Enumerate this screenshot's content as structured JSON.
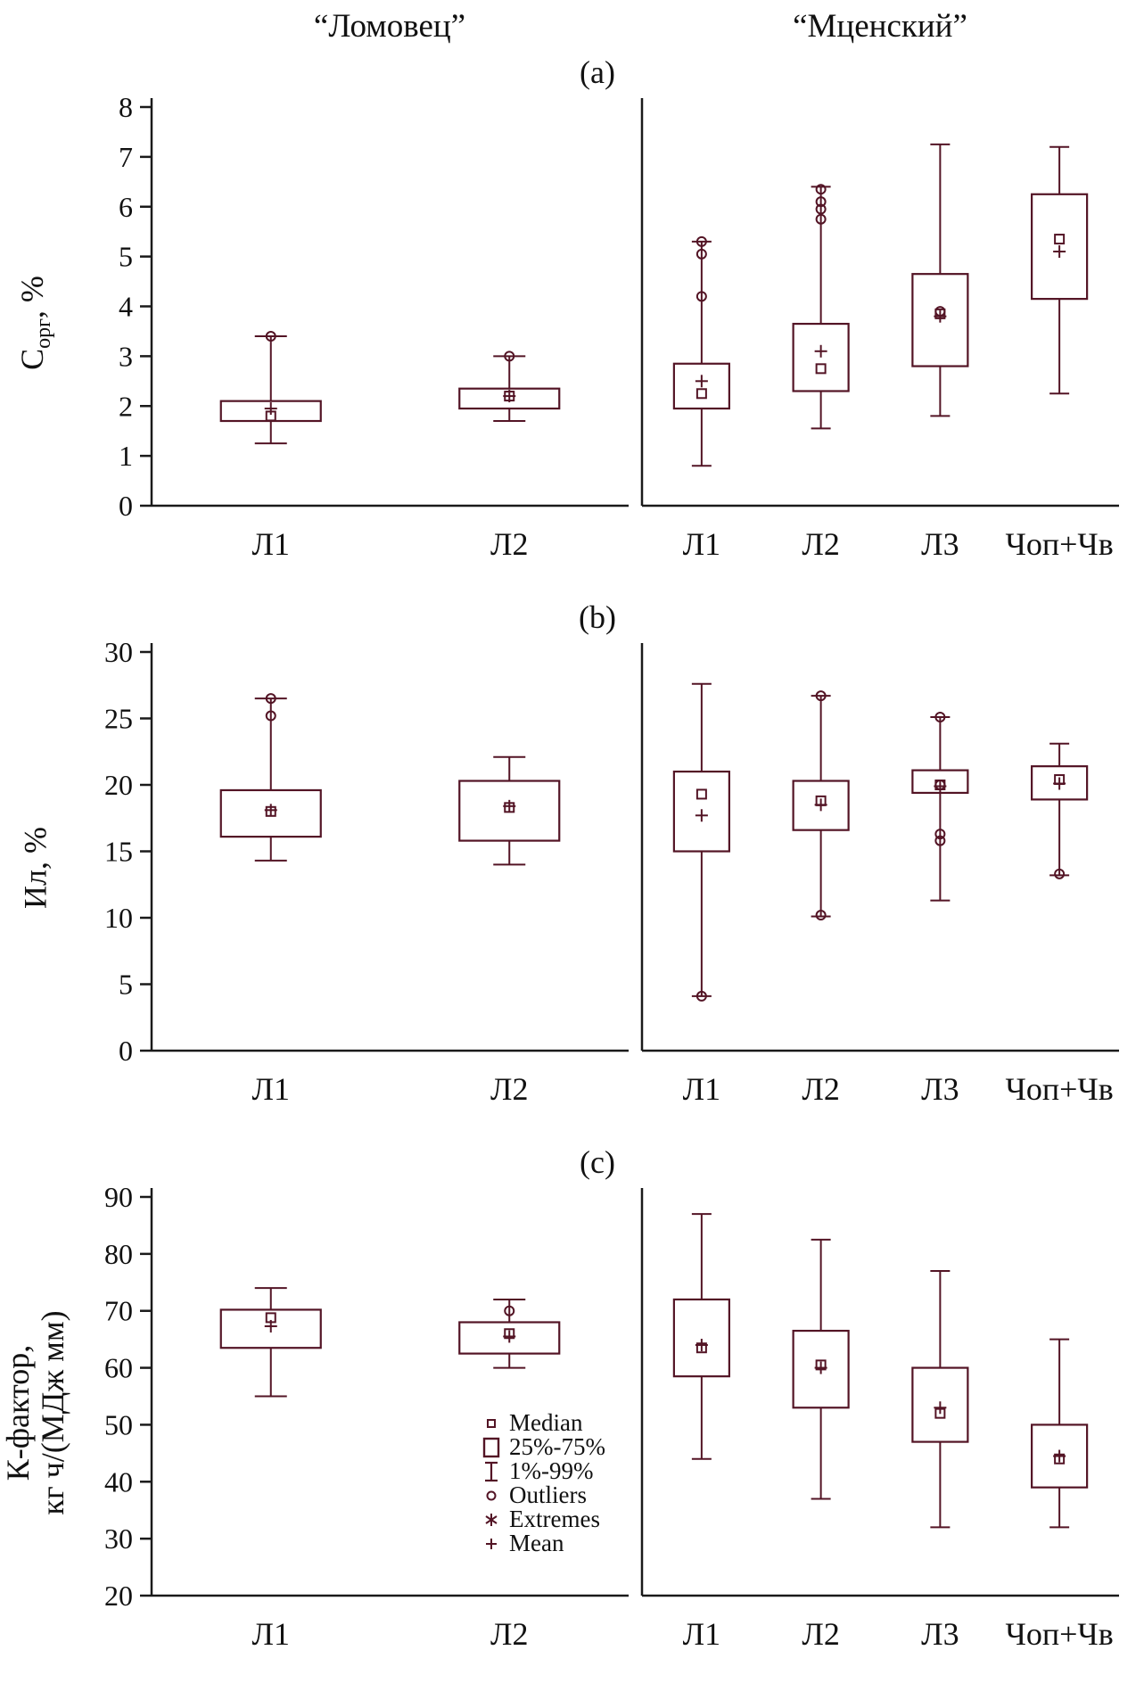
{
  "figure": {
    "group_headers": {
      "left": "“Ломовец”",
      "right": "“Мценский”"
    }
  },
  "colors": {
    "box": "#531425",
    "axis": "#1a1a1a",
    "text": "#111111",
    "background": "#ffffff"
  },
  "legend": {
    "items": [
      {
        "key": "median",
        "label": "Median"
      },
      {
        "key": "iqr",
        "label": "25%-75%"
      },
      {
        "key": "whisker",
        "label": "1%-99%"
      },
      {
        "key": "outliers",
        "label": "Outliers"
      },
      {
        "key": "extremes",
        "label": "Extremes"
      },
      {
        "key": "mean",
        "label": "Mean"
      }
    ]
  },
  "chart_data": [
    {
      "type": "boxplot",
      "title": "(a)",
      "ylabel": {
        "pre": "C",
        "sub": "орг",
        "post": ", %",
        "line2": ""
      },
      "ylim": [
        0,
        8
      ],
      "yticks": [
        0,
        1,
        2,
        3,
        4,
        5,
        6,
        7,
        8
      ],
      "groups": [
        {
          "name": "Ломовец",
          "categories": [
            "Л1",
            "Л2"
          ],
          "boxes": [
            {
              "low": 1.25,
              "q1": 1.7,
              "median": 1.8,
              "q3": 2.1,
              "high": 3.4,
              "mean": 1.95,
              "outliers": [
                3.4
              ]
            },
            {
              "low": 1.7,
              "q1": 1.95,
              "median": 2.2,
              "q3": 2.35,
              "high": 3.0,
              "mean": 2.2,
              "outliers": [
                3.0
              ]
            }
          ]
        },
        {
          "name": "Мценский",
          "categories": [
            "Л1",
            "Л2",
            "Л3",
            "Чоп+Чв"
          ],
          "boxes": [
            {
              "low": 0.8,
              "q1": 1.95,
              "median": 2.25,
              "q3": 2.85,
              "high": 5.3,
              "mean": 2.5,
              "outliers": [
                4.2,
                5.05,
                5.3
              ]
            },
            {
              "low": 1.55,
              "q1": 2.3,
              "median": 2.75,
              "q3": 3.65,
              "high": 6.4,
              "mean": 3.1,
              "outliers": [
                5.75,
                5.95,
                6.1,
                6.35
              ]
            },
            {
              "low": 1.8,
              "q1": 2.8,
              "median": 3.85,
              "q3": 4.65,
              "high": 7.25,
              "mean": 3.8,
              "outliers": [
                3.9
              ]
            },
            {
              "low": 2.25,
              "q1": 4.15,
              "median": 5.35,
              "q3": 6.25,
              "high": 7.2,
              "mean": 5.1,
              "outliers": []
            }
          ]
        }
      ]
    },
    {
      "type": "boxplot",
      "title": "(b)",
      "ylabel": {
        "pre": "Ил, %",
        "sub": "",
        "post": "",
        "line2": ""
      },
      "ylim": [
        0,
        30
      ],
      "yticks": [
        0,
        5,
        10,
        15,
        20,
        25,
        30
      ],
      "groups": [
        {
          "name": "Ломовец",
          "categories": [
            "Л1",
            "Л2"
          ],
          "boxes": [
            {
              "low": 14.3,
              "q1": 16.1,
              "median": 18.0,
              "q3": 19.6,
              "high": 26.5,
              "mean": 18.1,
              "outliers": [
                25.2,
                26.5
              ]
            },
            {
              "low": 14.0,
              "q1": 15.8,
              "median": 18.3,
              "q3": 20.3,
              "high": 22.1,
              "mean": 18.4,
              "outliers": []
            }
          ]
        },
        {
          "name": "Мценский",
          "categories": [
            "Л1",
            "Л2",
            "Л3",
            "Чоп+Чв"
          ],
          "boxes": [
            {
              "low": 4.1,
              "q1": 15.0,
              "median": 19.3,
              "q3": 21.0,
              "high": 27.6,
              "mean": 17.7,
              "outliers": [
                4.1
              ]
            },
            {
              "low": 10.1,
              "q1": 16.6,
              "median": 18.8,
              "q3": 20.3,
              "high": 26.7,
              "mean": 18.5,
              "outliers": [
                10.2,
                26.7
              ]
            },
            {
              "low": 11.3,
              "q1": 19.4,
              "median": 20.0,
              "q3": 21.1,
              "high": 25.1,
              "mean": 19.9,
              "outliers": [
                15.8,
                16.3,
                20.0,
                25.1
              ]
            },
            {
              "low": 13.2,
              "q1": 18.9,
              "median": 20.4,
              "q3": 21.4,
              "high": 23.1,
              "mean": 20.1,
              "outliers": [
                13.3
              ]
            }
          ]
        }
      ]
    },
    {
      "type": "boxplot",
      "title": "(c)",
      "ylabel": {
        "pre": "К-фактор,",
        "sub": "",
        "post": "",
        "line2": "кг ч/(МДж мм)"
      },
      "ylim": [
        20,
        90
      ],
      "yticks": [
        20,
        30,
        40,
        50,
        60,
        70,
        80,
        90
      ],
      "groups": [
        {
          "name": "Ломовец",
          "categories": [
            "Л1",
            "Л2"
          ],
          "boxes": [
            {
              "low": 55,
              "q1": 63.5,
              "median": 68.8,
              "q3": 70.2,
              "high": 74,
              "mean": 67.3,
              "outliers": []
            },
            {
              "low": 60,
              "q1": 62.5,
              "median": 66,
              "q3": 68,
              "high": 72,
              "mean": 65.5,
              "outliers": [
                70
              ]
            }
          ]
        },
        {
          "name": "Мценский",
          "categories": [
            "Л1",
            "Л2",
            "Л3",
            "Чоп+Чв"
          ],
          "boxes": [
            {
              "low": 44,
              "q1": 58.5,
              "median": 63.5,
              "q3": 72,
              "high": 87,
              "mean": 64,
              "outliers": []
            },
            {
              "low": 37,
              "q1": 53,
              "median": 60.5,
              "q3": 66.5,
              "high": 82.5,
              "mean": 60,
              "outliers": []
            },
            {
              "low": 32,
              "q1": 47,
              "median": 52,
              "q3": 60,
              "high": 77,
              "mean": 53,
              "outliers": []
            },
            {
              "low": 32,
              "q1": 39,
              "median": 44,
              "q3": 50,
              "high": 65,
              "mean": 44.5,
              "outliers": []
            }
          ]
        }
      ]
    }
  ]
}
